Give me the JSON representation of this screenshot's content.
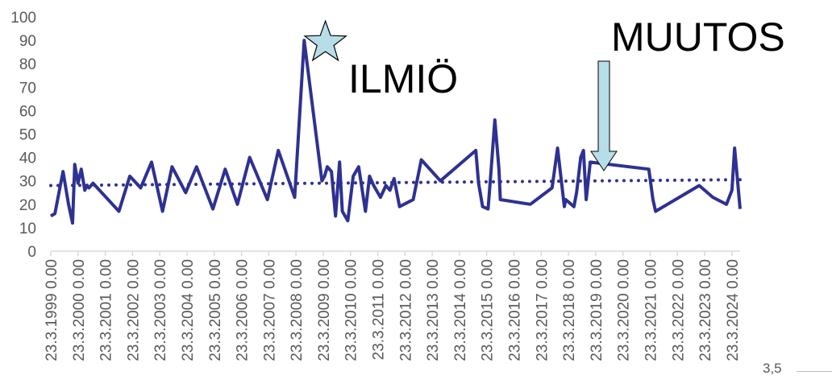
{
  "chart_data": {
    "type": "line",
    "ylim": [
      0,
      100
    ],
    "yticks": [
      "0",
      "10",
      "20",
      "30",
      "40",
      "50",
      "60",
      "70",
      "80",
      "90",
      "100"
    ],
    "xlim": [
      1999.0,
      2024.3
    ],
    "xtick_years": [
      1999,
      2000,
      2001,
      2002,
      2003,
      2004,
      2005,
      2006,
      2007,
      2008,
      2009,
      2010,
      2011,
      2012,
      2013,
      2014,
      2015,
      2016,
      2017,
      2018,
      2019,
      2020,
      2021,
      2022,
      2023,
      2024
    ],
    "xtick_labels": [
      "23.3.1999 0.00",
      "23.3.2000 0.00",
      "23.3.2001 0.00",
      "23.3.2002 0.00",
      "23.3.2003 0.00",
      "23.3.2004 0.00",
      "23.3.2005 0.00",
      "23.3.2006 0.00",
      "23.3.2007 0.00",
      "23.3.2008 0.00",
      "23.3.2009 0.00",
      "23.3.2010 0.00",
      "23.3.2011 0.00",
      "23.3.2012 0.00",
      "23.3.2013 0.00",
      "23.3.2014 0.00",
      "23.3.2015 0.00",
      "23.3.2016 0.00",
      "23.3.2017 0.00",
      "23.3.2018 0.00",
      "23.3.2019 0.00",
      "23.3.2020 0.00",
      "23.3.2021 0.00",
      "23.3.2022 0.00",
      "23.3.2023 0.00",
      "23.3.2024 0.00"
    ],
    "series": [
      {
        "color": "#2e3192",
        "x": [
          1999.0,
          1999.15,
          1999.45,
          1999.65,
          1999.8,
          1999.88,
          2000.0,
          2000.12,
          2000.25,
          2000.32,
          2000.4,
          2000.55,
          2001.5,
          2001.9,
          2002.3,
          2002.7,
          2003.1,
          2003.45,
          2003.95,
          2004.35,
          2004.95,
          2005.4,
          2005.85,
          2006.3,
          2006.95,
          2007.35,
          2007.95,
          2008.3,
          2008.95,
          2009.05,
          2009.15,
          2009.3,
          2009.45,
          2009.6,
          2009.7,
          2009.9,
          2010.1,
          2010.3,
          2010.55,
          2010.7,
          2010.85,
          2011.1,
          2011.3,
          2011.45,
          2011.6,
          2011.8,
          2012.3,
          2012.6,
          2013.3,
          2014.6,
          2014.7,
          2014.85,
          2015.05,
          2015.15,
          2015.3,
          2015.45,
          2015.5,
          2016.6,
          2017.4,
          2017.6,
          2017.85,
          2017.9,
          2018.2,
          2018.3,
          2018.45,
          2018.55,
          2018.65,
          2018.8,
          2020.95,
          2021.1,
          2021.2,
          2022.8,
          2023.3,
          2023.8,
          2024.0,
          2024.1,
          2024.3
        ],
        "y": [
          15,
          16,
          34,
          20,
          12,
          37,
          29,
          35,
          26,
          28,
          27,
          29,
          17,
          32,
          27,
          38,
          17,
          36,
          25,
          36,
          18,
          35,
          20,
          40,
          22,
          43,
          23,
          90,
          30,
          32,
          36,
          34,
          15,
          38,
          17,
          13,
          32,
          36,
          17,
          32,
          28,
          23,
          28,
          26,
          31,
          19,
          22,
          39,
          30,
          43,
          29,
          19,
          18,
          33,
          56,
          35,
          22,
          20,
          27,
          44,
          19,
          22,
          19,
          25,
          40,
          43,
          22,
          38,
          35,
          22,
          17,
          28,
          23,
          20,
          26,
          44,
          18
        ]
      },
      {
        "style": "dotted-trend",
        "color": "#2e3192",
        "x": [
          1999.0,
          2024.3
        ],
        "y": [
          28,
          30.5
        ]
      }
    ],
    "annotations": [
      {
        "text": "ILMIÖ",
        "marker": "star",
        "x": 2009.05,
        "y": 90
      },
      {
        "text": "MUUTOS",
        "marker": "down-arrow",
        "x": 2019.3,
        "y": 33
      }
    ]
  },
  "page_number": "3,5",
  "colors": {
    "line": "#2e3192",
    "star_fill": "#b7dde8",
    "arrow_fill": "#b7dde8",
    "axis": "#d9d9d9",
    "tick_text": "#595959"
  }
}
